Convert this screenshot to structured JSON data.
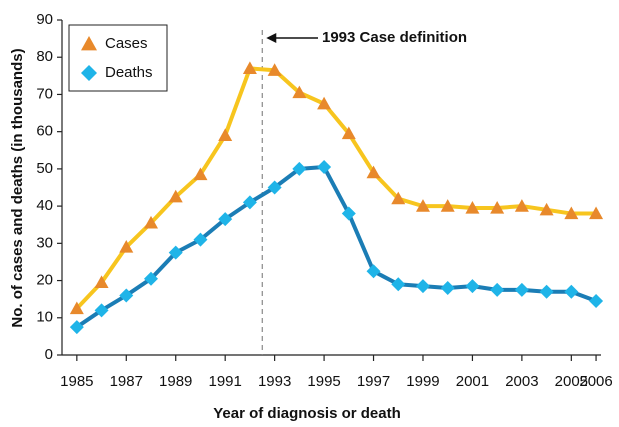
{
  "chart_data": {
    "type": "line",
    "x_label": "Year of diagnosis or death",
    "y_label": "No. of cases and deaths (in thousands)",
    "x": [
      1985,
      1986,
      1987,
      1988,
      1989,
      1990,
      1991,
      1992,
      1993,
      1994,
      1995,
      1996,
      1997,
      1998,
      1999,
      2000,
      2001,
      2002,
      2003,
      2004,
      2005,
      2006
    ],
    "series": [
      {
        "name": "Cases",
        "color": "#e8892b",
        "line_color": "#f7c51e",
        "marker": "triangle",
        "values": [
          12.5,
          19.5,
          29,
          35.5,
          42.5,
          48.5,
          59,
          77,
          76.5,
          70.5,
          67.5,
          59.5,
          49,
          42,
          40,
          40,
          39.5,
          39.5,
          40,
          39,
          38,
          38
        ]
      },
      {
        "name": "Deaths",
        "color": "#1fb4e8",
        "line_color": "#1b7db5",
        "marker": "diamond",
        "values": [
          7.5,
          12,
          16,
          20.5,
          27.5,
          31,
          36.5,
          41,
          45,
          50,
          50.5,
          38,
          22.5,
          19,
          18.5,
          18,
          18.5,
          17.5,
          17.5,
          17,
          17,
          14.5
        ]
      }
    ],
    "annotation": {
      "text": "1993 Case definition",
      "x": 1992.5
    },
    "xlim": [
      1984.4,
      2006.2
    ],
    "xticks": [
      1985,
      1987,
      1989,
      1991,
      1993,
      1995,
      1997,
      1999,
      2001,
      2003,
      2005,
      2006
    ],
    "ylim": [
      0,
      90
    ],
    "yticks": [
      0,
      10,
      20,
      30,
      40,
      50,
      60,
      70,
      80,
      90
    ],
    "grid": false,
    "legend": "upper left"
  }
}
